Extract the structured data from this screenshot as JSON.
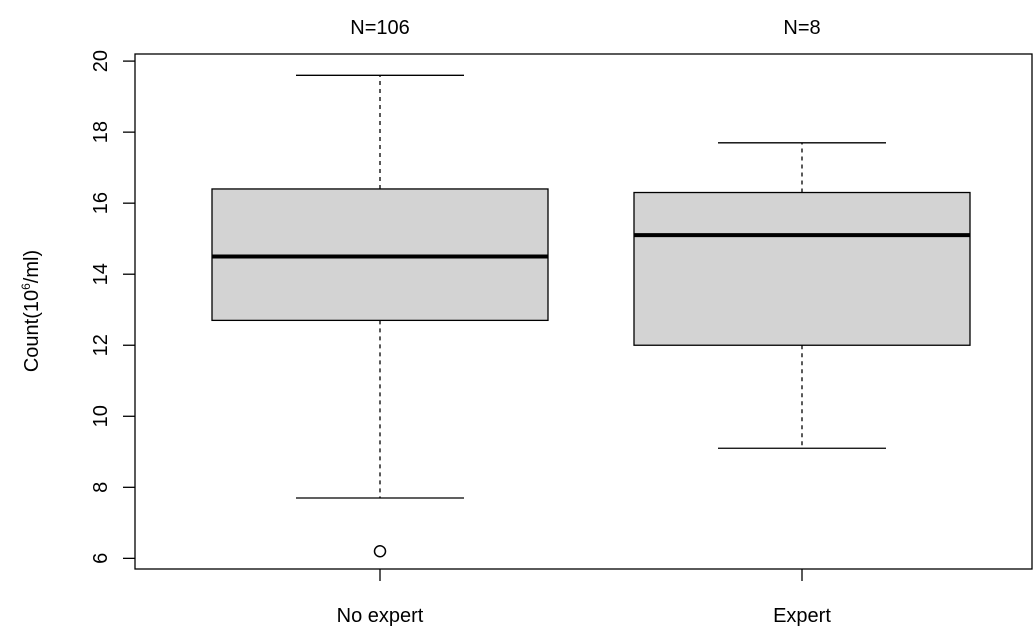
{
  "chart_data": {
    "type": "boxplot",
    "title": "",
    "xlabel": "",
    "ylabel": {
      "prefix": "Count(10",
      "sup": "6",
      "suffix": "/ml)"
    },
    "ylim": [
      5.7,
      20.2
    ],
    "yticks": [
      6,
      8,
      10,
      12,
      14,
      16,
      18,
      20
    ],
    "grid": false,
    "box_fill": "#d3d3d3",
    "groups": [
      {
        "category": "No expert",
        "n_label": "N=106",
        "whisker_low": 7.7,
        "q1": 12.7,
        "median": 14.5,
        "q3": 16.4,
        "whisker_high": 19.6,
        "outliers": [
          6.2
        ]
      },
      {
        "category": "Expert",
        "n_label": "N=8",
        "whisker_low": 9.1,
        "q1": 12.0,
        "median": 15.1,
        "q3": 16.3,
        "whisker_high": 17.7,
        "outliers": []
      }
    ]
  }
}
